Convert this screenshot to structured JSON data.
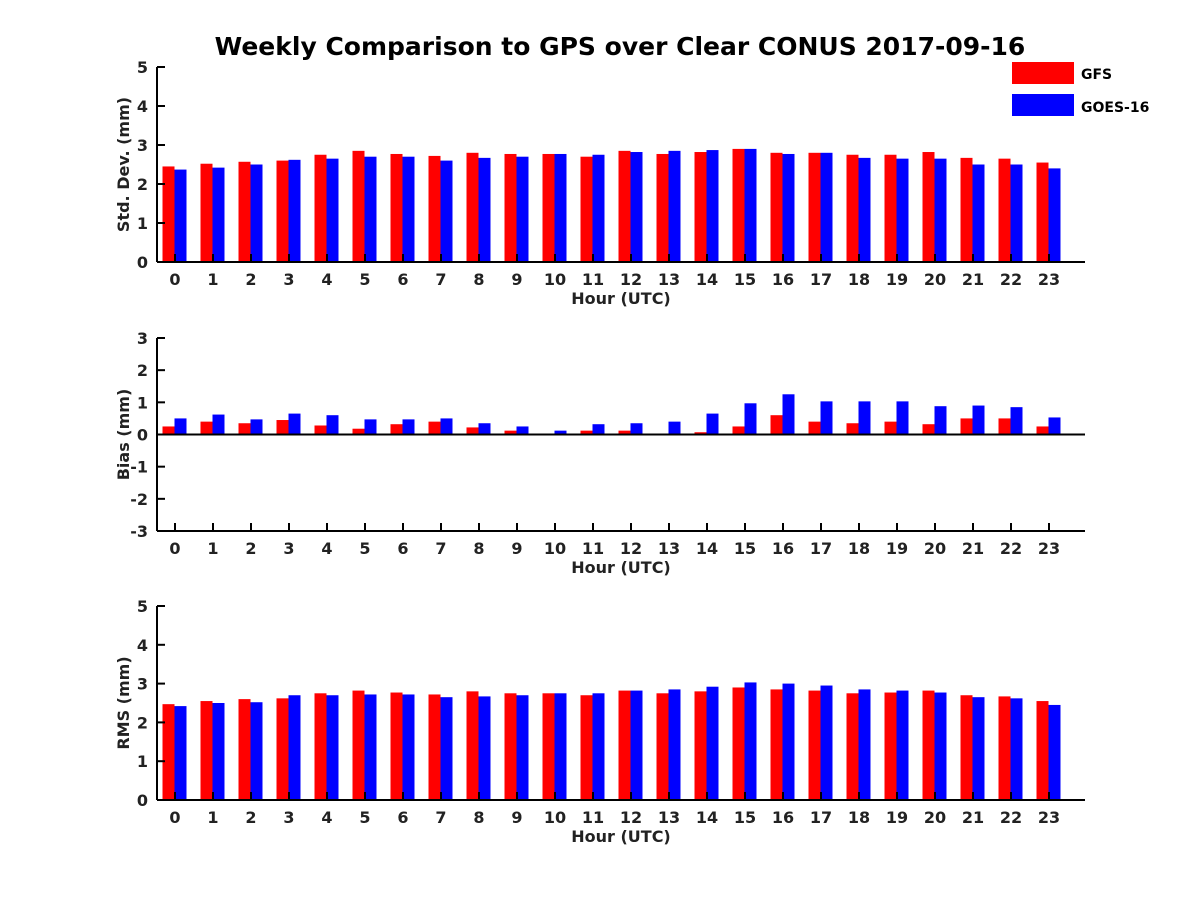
{
  "figure": {
    "title": "Weekly Comparison to GPS over Clear CONUS 2017-09-16"
  },
  "legend": [
    {
      "name": "GFS",
      "color": "#ff0000"
    },
    {
      "name": "GOES-16",
      "color": "#0000ff"
    }
  ],
  "chart_data": [
    {
      "type": "bar",
      "ylabel": "Std. Dev. (mm)",
      "xlabel": "Hour (UTC)",
      "ylim": [
        0,
        5
      ],
      "yticks": [
        0,
        1,
        2,
        3,
        4,
        5
      ],
      "categories": [
        "0",
        "1",
        "2",
        "3",
        "4",
        "5",
        "6",
        "7",
        "8",
        "9",
        "10",
        "11",
        "12",
        "13",
        "14",
        "15",
        "16",
        "17",
        "18",
        "19",
        "20",
        "21",
        "22",
        "23"
      ],
      "series": [
        {
          "name": "GFS",
          "color": "#ff0000",
          "values": [
            2.45,
            2.52,
            2.57,
            2.6,
            2.75,
            2.85,
            2.77,
            2.72,
            2.8,
            2.77,
            2.77,
            2.7,
            2.85,
            2.77,
            2.82,
            2.9,
            2.8,
            2.8,
            2.75,
            2.75,
            2.82,
            2.67,
            2.65,
            2.55
          ]
        },
        {
          "name": "GOES-16",
          "color": "#0000ff",
          "values": [
            2.37,
            2.42,
            2.5,
            2.62,
            2.65,
            2.7,
            2.7,
            2.6,
            2.67,
            2.7,
            2.77,
            2.75,
            2.82,
            2.85,
            2.87,
            2.9,
            2.77,
            2.8,
            2.67,
            2.65,
            2.65,
            2.5,
            2.5,
            2.4
          ]
        }
      ]
    },
    {
      "type": "bar",
      "ylabel": "Bias (mm)",
      "xlabel": "Hour (UTC)",
      "ylim": [
        -3,
        3
      ],
      "yticks": [
        -3,
        -2,
        -1,
        0,
        1,
        2,
        3
      ],
      "categories": [
        "0",
        "1",
        "2",
        "3",
        "4",
        "5",
        "6",
        "7",
        "8",
        "9",
        "10",
        "11",
        "12",
        "13",
        "14",
        "15",
        "16",
        "17",
        "18",
        "19",
        "20",
        "21",
        "22",
        "23"
      ],
      "series": [
        {
          "name": "GFS",
          "color": "#ff0000",
          "values": [
            0.25,
            0.4,
            0.35,
            0.45,
            0.28,
            0.18,
            0.32,
            0.4,
            0.22,
            0.12,
            0.0,
            0.12,
            0.12,
            0.0,
            0.07,
            0.25,
            0.6,
            0.4,
            0.35,
            0.4,
            0.32,
            0.5,
            0.5,
            0.25
          ]
        },
        {
          "name": "GOES-16",
          "color": "#0000ff",
          "values": [
            0.5,
            0.62,
            0.47,
            0.65,
            0.6,
            0.47,
            0.47,
            0.5,
            0.35,
            0.25,
            0.12,
            0.32,
            0.35,
            0.4,
            0.65,
            0.97,
            1.25,
            1.03,
            1.03,
            1.03,
            0.88,
            0.9,
            0.85,
            0.53
          ]
        }
      ]
    },
    {
      "type": "bar",
      "ylabel": "RMS (mm)",
      "xlabel": "Hour (UTC)",
      "ylim": [
        0,
        5
      ],
      "yticks": [
        0,
        1,
        2,
        3,
        4,
        5
      ],
      "categories": [
        "0",
        "1",
        "2",
        "3",
        "4",
        "5",
        "6",
        "7",
        "8",
        "9",
        "10",
        "11",
        "12",
        "13",
        "14",
        "15",
        "16",
        "17",
        "18",
        "19",
        "20",
        "21",
        "22",
        "23"
      ],
      "series": [
        {
          "name": "GFS",
          "color": "#ff0000",
          "values": [
            2.47,
            2.55,
            2.6,
            2.62,
            2.75,
            2.82,
            2.77,
            2.72,
            2.8,
            2.75,
            2.75,
            2.7,
            2.82,
            2.75,
            2.8,
            2.9,
            2.85,
            2.82,
            2.75,
            2.77,
            2.82,
            2.7,
            2.67,
            2.55
          ]
        },
        {
          "name": "GOES-16",
          "color": "#0000ff",
          "values": [
            2.42,
            2.5,
            2.52,
            2.7,
            2.7,
            2.72,
            2.72,
            2.65,
            2.67,
            2.7,
            2.75,
            2.75,
            2.82,
            2.85,
            2.92,
            3.03,
            3.0,
            2.95,
            2.85,
            2.82,
            2.77,
            2.65,
            2.62,
            2.45
          ]
        }
      ]
    }
  ]
}
